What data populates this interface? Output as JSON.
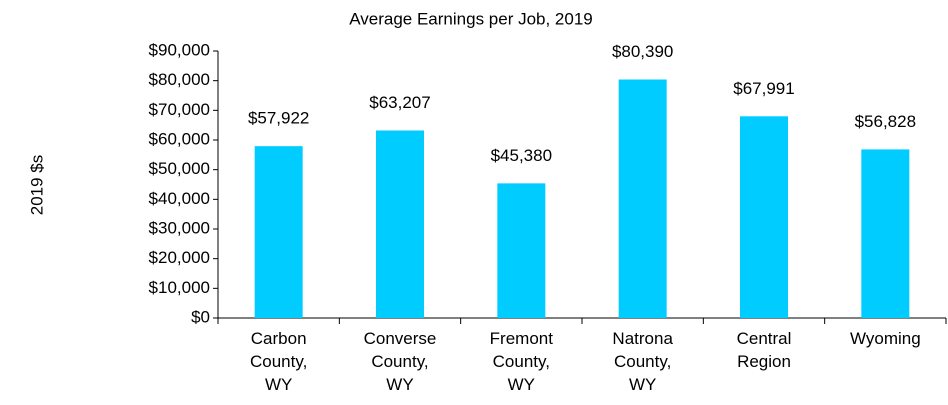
{
  "chart_data": {
    "type": "bar",
    "title": "Average Earnings per Job, 2019",
    "y_label": "2019 $s",
    "categories": [
      "Carbon County, WY",
      "Converse County, WY",
      "Fremont County, WY",
      "Natrona County, WY",
      "Central Region",
      "Wyoming"
    ],
    "values": [
      57922,
      63207,
      45380,
      80390,
      67991,
      56828
    ],
    "value_labels": [
      "$57,922",
      "$63,207",
      "$45,380",
      "$80,390",
      "$67,991",
      "$56,828"
    ],
    "color": "#00ccff",
    "ylim": [
      0,
      90000
    ],
    "yticks": [
      {
        "value": 0,
        "label": "$0"
      },
      {
        "value": 10000,
        "label": "$10,000"
      },
      {
        "value": 20000,
        "label": "$20,000"
      },
      {
        "value": 30000,
        "label": "$30,000"
      },
      {
        "value": 40000,
        "label": "$40,000"
      },
      {
        "value": 50000,
        "label": "$50,000"
      },
      {
        "value": 60000,
        "label": "$60,000"
      },
      {
        "value": 70000,
        "label": "$70,000"
      },
      {
        "value": 80000,
        "label": "$80,000"
      },
      {
        "value": 90000,
        "label": "$90,000"
      }
    ],
    "grid": false
  }
}
